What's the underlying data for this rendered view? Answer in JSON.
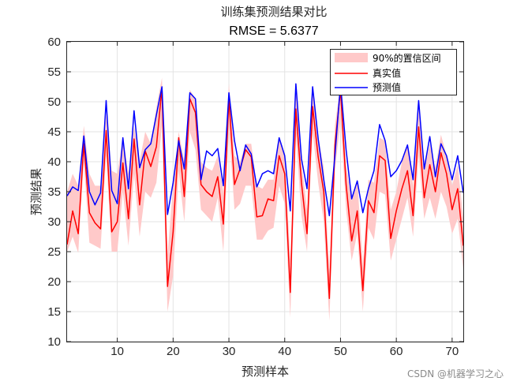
{
  "chart_data": {
    "type": "line",
    "title": "训练集预测结果对比",
    "subtitle": "RMSE = 5.6377",
    "xlabel": "预测样本",
    "ylabel": "预测结果",
    "xlim": [
      1,
      72
    ],
    "ylim": [
      10,
      60
    ],
    "xticks": [
      10,
      20,
      30,
      40,
      50,
      60,
      70
    ],
    "yticks": [
      10,
      15,
      20,
      25,
      30,
      35,
      40,
      45,
      50,
      55,
      60
    ],
    "grid": true,
    "legend_position": "top-right",
    "x": [
      1,
      2,
      3,
      4,
      5,
      6,
      7,
      8,
      9,
      10,
      11,
      12,
      13,
      14,
      15,
      16,
      17,
      18,
      19,
      20,
      21,
      22,
      23,
      24,
      25,
      26,
      27,
      28,
      29,
      30,
      31,
      32,
      33,
      34,
      35,
      36,
      37,
      38,
      39,
      40,
      41,
      42,
      43,
      44,
      45,
      46,
      47,
      48,
      49,
      50,
      51,
      52,
      53,
      54,
      55,
      56,
      57,
      58,
      59,
      60,
      61,
      62,
      63,
      64,
      65,
      66,
      67,
      68,
      69,
      70,
      71,
      72
    ],
    "band": {
      "name": "90%的置信区间",
      "color": "#ffc9c9",
      "lower": [
        25.0,
        27.5,
        24.8,
        40.0,
        26.5,
        26.0,
        25.5,
        41.0,
        25.0,
        25.0,
        35.0,
        26.0,
        38.0,
        27.5,
        35.0,
        34.0,
        36.5,
        46.0,
        15.0,
        21.0,
        38.5,
        30.0,
        45.0,
        42.0,
        32.0,
        31.0,
        30.0,
        34.0,
        25.0,
        45.5,
        32.0,
        33.0,
        36.0,
        36.0,
        27.0,
        27.0,
        28.5,
        29.0,
        36.0,
        33.0,
        14.0,
        44.5,
        31.0,
        25.0,
        45.0,
        36.5,
        30.0,
        13.5,
        38.5,
        47.0,
        32.0,
        23.5,
        28.0,
        15.0,
        29.0,
        27.0,
        35.0,
        34.5,
        23.5,
        27.0,
        30.5,
        34.0,
        27.5,
        41.0,
        30.5,
        34.0,
        30.5,
        35.0,
        32.5,
        28.0,
        30.5,
        22.0
      ],
      "upper": [
        35.0,
        38.0,
        36.0,
        46.0,
        38.0,
        36.0,
        36.0,
        48.0,
        38.5,
        38.0,
        44.0,
        38.0,
        46.0,
        40.0,
        45.0,
        43.0,
        49.0,
        54.0,
        24.5,
        36.0,
        45.0,
        40.0,
        52.0,
        50.5,
        40.0,
        39.0,
        38.5,
        41.0,
        35.0,
        53.0,
        41.0,
        40.0,
        43.0,
        43.0,
        36.0,
        35.5,
        37.0,
        37.0,
        44.0,
        41.0,
        23.5,
        52.5,
        40.0,
        32.0,
        52.0,
        44.0,
        39.0,
        22.0,
        46.0,
        53.0,
        39.5,
        33.5,
        37.0,
        23.0,
        37.0,
        36.5,
        44.0,
        43.5,
        32.0,
        35.0,
        40.0,
        43.0,
        36.0,
        49.0,
        38.5,
        43.0,
        39.0,
        44.5,
        41.0,
        36.0,
        39.5,
        30.5
      ]
    },
    "series": [
      {
        "name": "真实值",
        "color": "#ff0000",
        "values": [
          26.2,
          31.8,
          28.0,
          43.0,
          31.5,
          29.8,
          28.8,
          45.2,
          28.3,
          30.0,
          39.8,
          30.5,
          43.8,
          32.8,
          41.8,
          39.2,
          42.5,
          52.3,
          19.2,
          28.3,
          44.0,
          34.2,
          50.5,
          48.2,
          36.2,
          35.0,
          34.2,
          37.5,
          29.6,
          50.5,
          36.2,
          38.8,
          42.0,
          40.8,
          30.8,
          31.0,
          33.8,
          33.5,
          41.0,
          38.0,
          18.2,
          48.8,
          36.5,
          28.0,
          49.2,
          40.8,
          35.0,
          17.2,
          42.8,
          52.0,
          36.2,
          26.8,
          31.8,
          18.5,
          33.5,
          31.5,
          41.0,
          40.2,
          27.2,
          31.8,
          35.5,
          38.5,
          31.0,
          45.8,
          34.0,
          39.5,
          35.0,
          41.5,
          38.0,
          32.0,
          35.5,
          26.0
        ]
      },
      {
        "name": "预测值",
        "color": "#0000ff",
        "values": [
          34.3,
          35.8,
          35.2,
          44.3,
          35.0,
          32.8,
          34.8,
          50.2,
          35.2,
          33.0,
          44.0,
          35.5,
          48.5,
          39.0,
          42.0,
          43.0,
          47.8,
          52.5,
          31.2,
          36.5,
          43.5,
          38.8,
          51.5,
          50.5,
          37.0,
          41.8,
          41.0,
          42.2,
          36.0,
          51.5,
          43.5,
          38.5,
          42.8,
          41.3,
          35.8,
          38.0,
          38.5,
          38.0,
          44.0,
          41.0,
          31.8,
          53.0,
          40.5,
          35.5,
          52.5,
          43.8,
          37.0,
          31.0,
          41.0,
          53.0,
          42.0,
          33.8,
          36.8,
          31.5,
          35.5,
          38.5,
          46.2,
          43.5,
          37.5,
          38.5,
          40.2,
          42.8,
          37.0,
          50.2,
          38.8,
          44.2,
          37.5,
          43.0,
          41.0,
          37.0,
          41.0,
          34.8
        ]
      }
    ]
  },
  "watermark": "CSDN @机器学习之心"
}
